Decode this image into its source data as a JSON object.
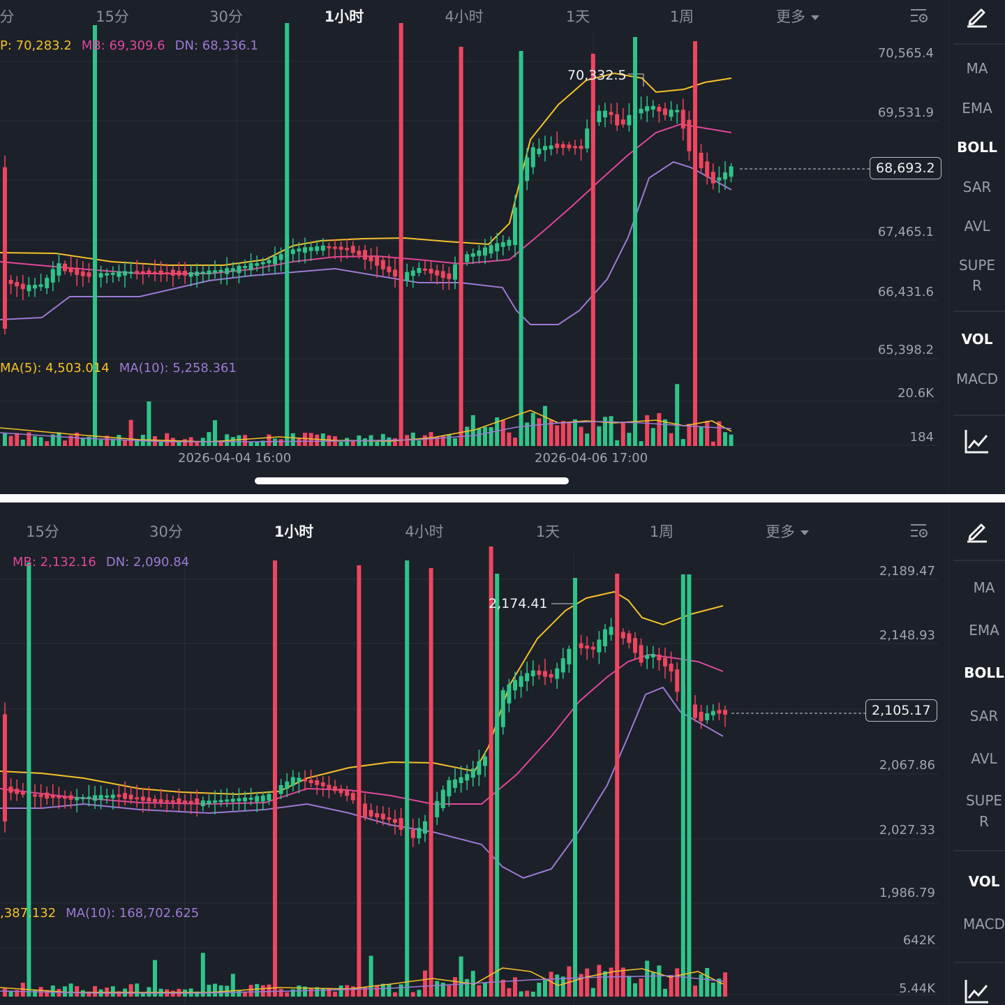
{
  "colors": {
    "up": "#2ec48a",
    "down": "#f0455f",
    "up_band": "#f5c12b",
    "mid_band": "#e0479d",
    "dn_band": "#9d7ad6",
    "ma5": "#f5c12b",
    "ma10": "#9d7ad6"
  },
  "icons": {
    "indicator_settings": "indicator-settings-icon",
    "draw": "pencil-icon",
    "chart_type": "line-chart-icon"
  },
  "top": {
    "tabs": [
      {
        "label": "分"
      },
      {
        "label": "15分"
      },
      {
        "label": "30分"
      },
      {
        "label": "1小时",
        "active": true
      },
      {
        "label": "4小时"
      },
      {
        "label": "1天"
      },
      {
        "label": "1周"
      },
      {
        "label": "更多"
      }
    ],
    "boll": {
      "up": "P: 70,283.2",
      "mb": "MB: 69,309.6",
      "dn": "DN: 68,336.1"
    },
    "vol_ma": {
      "ma5": "MA(5): 4,503.014",
      "ma10": "MA(10): 5,258.361"
    },
    "price_axis": [
      "70,565.4",
      "69,531.9",
      "67,465.1",
      "66,431.6",
      "65,398.2"
    ],
    "vol_axis": [
      "20.6K",
      "184"
    ],
    "current_price": "68,693.2",
    "peak_label": "70,332.5",
    "time_labels": [
      "2026-04-04 16:00",
      "2026-04-06 17:00"
    ],
    "side": [
      "MA",
      "EMA",
      "BOLL",
      "SAR",
      "AVL",
      "SUPE\nR",
      "VOL",
      "MACD"
    ],
    "side_active": [
      "BOLL",
      "VOL"
    ]
  },
  "bottom": {
    "tabs": [
      {
        "label": "15分"
      },
      {
        "label": "30分"
      },
      {
        "label": "1小时",
        "active": true
      },
      {
        "label": "4小时"
      },
      {
        "label": "1天"
      },
      {
        "label": "1周"
      },
      {
        "label": "更多"
      }
    ],
    "boll": {
      "mb": "MB: 2,132.16",
      "dn": "DN: 2,090.84"
    },
    "vol_ma": {
      "ma5": ",387.132",
      "ma10": "MA(10): 168,702.625"
    },
    "price_axis": [
      "2,189.47",
      "2,148.93",
      "2,067.86",
      "2,027.33",
      "1,986.79"
    ],
    "vol_axis": [
      "642K",
      "5.44K"
    ],
    "current_price": "2,105.17",
    "peak_label": "2,174.41",
    "side": [
      "MA",
      "EMA",
      "BOLL",
      "SAR",
      "AVL",
      "SUPE\nR",
      "VOL",
      "MACD"
    ],
    "side_active": [
      "BOLL",
      "VOL"
    ]
  }
}
